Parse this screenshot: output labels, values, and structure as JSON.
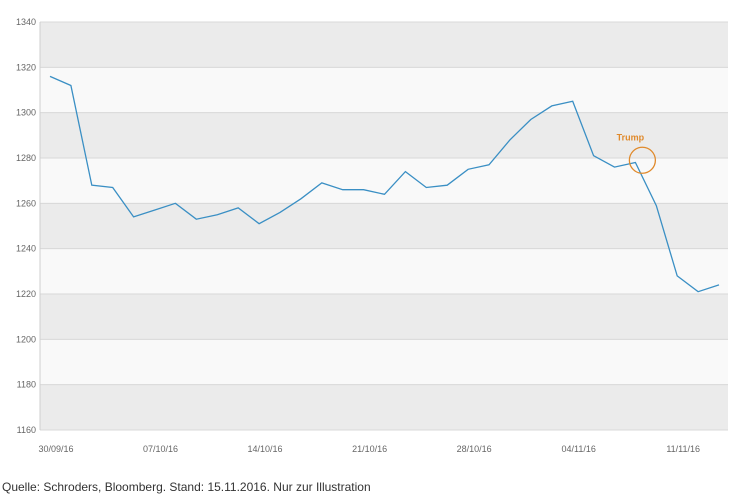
{
  "chart_data": {
    "type": "line",
    "title": "",
    "xlabel": "",
    "ylabel": "",
    "ylim": [
      1160,
      1340
    ],
    "yticks": [
      1160,
      1180,
      1200,
      1220,
      1240,
      1260,
      1280,
      1300,
      1320,
      1340
    ],
    "x_tick_labels": [
      "30/09/16",
      "07/10/16",
      "14/10/16",
      "21/10/16",
      "28/10/16",
      "04/11/16",
      "11/11/16"
    ],
    "x_tick_index": [
      0,
      5,
      10,
      15,
      20,
      25,
      30
    ],
    "grid": "alternating horizontal bands",
    "legend": "none",
    "line_color": "#3a8fc4",
    "series": [
      {
        "values": [
          1316,
          1312,
          1268,
          1267,
          1254,
          1257,
          1260,
          1253,
          1255,
          1258,
          1251,
          1256,
          1262,
          1269,
          1266,
          1266,
          1264,
          1274,
          1267,
          1268,
          1275,
          1277,
          1288,
          1297,
          1303,
          1305,
          1281,
          1276,
          1278,
          1259,
          1228,
          1221,
          1224
        ]
      }
    ],
    "annotation": {
      "text": "Trump",
      "x_index": 28,
      "y": 1279,
      "color": "#e08a2c"
    }
  },
  "footer": {
    "source": "Quelle: Schroders, Bloomberg. Stand: 15.11.2016. Nur zur Illustration"
  }
}
